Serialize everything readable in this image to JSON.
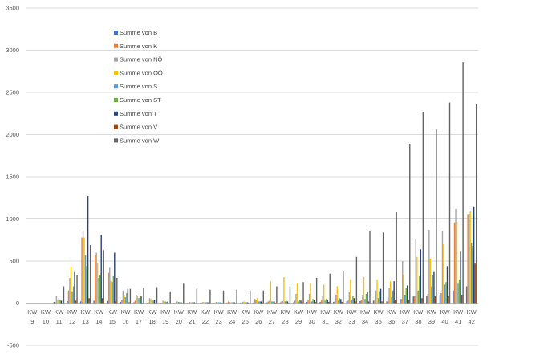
{
  "chart_data": {
    "type": "bar",
    "title": "",
    "xlabel": "",
    "ylabel": "",
    "ylim": [
      -500,
      3500
    ],
    "y_ticks": [
      -500,
      0,
      500,
      1000,
      1500,
      2000,
      2500,
      3000,
      3500
    ],
    "grid": true,
    "legend_position": "top-left",
    "categories": [
      {
        "line1": "KW",
        "line2": "9"
      },
      {
        "line1": "KW",
        "line2": "10"
      },
      {
        "line1": "KW",
        "line2": "11"
      },
      {
        "line1": "KW",
        "line2": "12"
      },
      {
        "line1": "KW",
        "line2": "13"
      },
      {
        "line1": "KW",
        "line2": "14"
      },
      {
        "line1": "KW",
        "line2": "15"
      },
      {
        "line1": "KW",
        "line2": "16"
      },
      {
        "line1": "KW",
        "line2": "17"
      },
      {
        "line1": "KW",
        "line2": "18"
      },
      {
        "line1": "KW",
        "line2": "19"
      },
      {
        "line1": "KW",
        "line2": "20"
      },
      {
        "line1": "KW",
        "line2": "21"
      },
      {
        "line1": "KW",
        "line2": "22"
      },
      {
        "line1": "KW",
        "line2": "23"
      },
      {
        "line1": "KW",
        "line2": "24"
      },
      {
        "line1": "KW",
        "line2": "25"
      },
      {
        "line1": "KW",
        "line2": "26"
      },
      {
        "line1": "KW",
        "line2": "27"
      },
      {
        "line1": "KW",
        "line2": "28"
      },
      {
        "line1": "KW",
        "line2": "29"
      },
      {
        "line1": "KW",
        "line2": "30"
      },
      {
        "line1": "KW",
        "line2": "31"
      },
      {
        "line1": "KW",
        "line2": "32"
      },
      {
        "line1": "KW",
        "line2": "33"
      },
      {
        "line1": "KW",
        "line2": "34"
      },
      {
        "line1": "KW",
        "line2": "35"
      },
      {
        "line1": "KW",
        "line2": "36"
      },
      {
        "line1": "KW",
        "line2": "37"
      },
      {
        "line1": "KW",
        "line2": "38"
      },
      {
        "line1": "KW",
        "line2": "39"
      },
      {
        "line1": "KW",
        "line2": "40"
      },
      {
        "line1": "KW",
        "line2": "41"
      },
      {
        "line1": "KW",
        "line2": "42"
      }
    ],
    "series": [
      {
        "name": "Summe von B",
        "color": "#4472C4",
        "values": [
          0,
          0,
          15,
          25,
          20,
          30,
          25,
          15,
          10,
          5,
          3,
          2,
          2,
          2,
          2,
          3,
          3,
          8,
          8,
          8,
          10,
          15,
          15,
          15,
          20,
          25,
          30,
          20,
          50,
          80,
          90,
          100,
          150,
          200
        ]
      },
      {
        "name": "Summe von K",
        "color": "#ED7D31",
        "values": [
          0,
          0,
          10,
          150,
          780,
          570,
          360,
          40,
          30,
          10,
          5,
          5,
          3,
          5,
          5,
          20,
          5,
          50,
          20,
          20,
          30,
          40,
          30,
          20,
          30,
          40,
          30,
          40,
          50,
          80,
          110,
          120,
          950,
          1050
        ]
      },
      {
        "name": "Summe von NÖ",
        "color": "#A5A5A5",
        "values": [
          0,
          0,
          90,
          300,
          860,
          600,
          420,
          150,
          100,
          60,
          30,
          20,
          15,
          15,
          15,
          15,
          15,
          40,
          30,
          25,
          110,
          110,
          90,
          100,
          130,
          100,
          150,
          180,
          500,
          760,
          870,
          860,
          1120,
          1060
        ]
      },
      {
        "name": "Summe von OÖ",
        "color": "#FFC000",
        "values": [
          0,
          0,
          40,
          430,
          780,
          480,
          260,
          100,
          90,
          50,
          20,
          20,
          10,
          10,
          10,
          10,
          20,
          60,
          260,
          310,
          240,
          240,
          220,
          200,
          280,
          310,
          280,
          260,
          340,
          550,
          530,
          700,
          960,
          1090
        ]
      },
      {
        "name": "Summe von S",
        "color": "#5B9BD5",
        "values": [
          0,
          0,
          60,
          140,
          570,
          300,
          250,
          70,
          60,
          40,
          20,
          15,
          10,
          10,
          10,
          10,
          10,
          20,
          20,
          20,
          20,
          20,
          30,
          30,
          40,
          50,
          60,
          70,
          100,
          150,
          200,
          220,
          240,
          720
        ]
      },
      {
        "name": "Summe von ST",
        "color": "#70AD47",
        "values": [
          0,
          0,
          40,
          200,
          440,
          330,
          320,
          120,
          60,
          30,
          15,
          10,
          10,
          10,
          10,
          10,
          10,
          20,
          20,
          30,
          40,
          50,
          50,
          60,
          80,
          110,
          140,
          150,
          180,
          320,
          330,
          250,
          280,
          680
        ]
      },
      {
        "name": "Summe von T",
        "color": "#264478",
        "values": [
          0,
          0,
          30,
          370,
          1270,
          810,
          600,
          170,
          80,
          40,
          20,
          10,
          10,
          10,
          10,
          10,
          10,
          20,
          20,
          20,
          30,
          40,
          40,
          50,
          60,
          140,
          170,
          260,
          210,
          640,
          370,
          440,
          610,
          1140
        ]
      },
      {
        "name": "Summe von V",
        "color": "#9E480E",
        "values": [
          0,
          0,
          5,
          30,
          60,
          60,
          20,
          10,
          5,
          3,
          2,
          2,
          2,
          2,
          2,
          2,
          2,
          5,
          5,
          5,
          10,
          15,
          15,
          15,
          20,
          20,
          20,
          40,
          40,
          60,
          80,
          80,
          100,
          470
        ]
      },
      {
        "name": "Summe von W",
        "color": "#636363",
        "values": [
          0,
          0,
          200,
          330,
          690,
          630,
          300,
          170,
          180,
          190,
          140,
          240,
          170,
          160,
          150,
          160,
          150,
          150,
          200,
          200,
          250,
          300,
          350,
          380,
          550,
          860,
          840,
          1080,
          1890,
          2270,
          2060,
          2380,
          2860,
          2360
        ]
      }
    ]
  }
}
